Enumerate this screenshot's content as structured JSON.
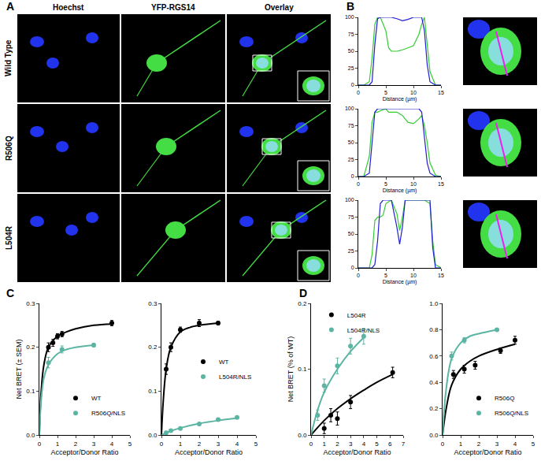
{
  "figure": {
    "panel_labels": [
      "A",
      "B",
      "C",
      "D"
    ],
    "columns": [
      "Hoechst",
      "YFP-RGS14",
      "Overlay"
    ],
    "rows": [
      "Wild Type",
      "R506Q",
      "L504R"
    ]
  },
  "chart_data": [
    {
      "type": "line",
      "x_label": "Distance (µm)",
      "xlim": [
        0,
        15
      ],
      "xticks": [
        0,
        5,
        10,
        15
      ],
      "ylim": [
        0,
        100
      ],
      "yticks": [
        0,
        25,
        50,
        75,
        100
      ],
      "series": [
        {
          "color": "#33cc33",
          "line_style": "solid",
          "x": [
            0,
            1,
            2,
            2.5,
            3,
            3.5,
            4,
            5,
            5.5,
            6,
            7,
            8,
            9,
            10,
            11,
            11.5,
            12,
            12.5,
            13,
            14,
            15
          ],
          "values": [
            0,
            0,
            5,
            40,
            90,
            100,
            100,
            80,
            55,
            50,
            50,
            52,
            55,
            58,
            75,
            90,
            100,
            60,
            20,
            0,
            0
          ]
        },
        {
          "color": "#2020d0",
          "line_style": "solid",
          "x": [
            0,
            1,
            2,
            2.5,
            3,
            3.5,
            4,
            5,
            5.5,
            6,
            7,
            8,
            9,
            10,
            11,
            11.5,
            12,
            12.5,
            13,
            14,
            15
          ],
          "values": [
            0,
            0,
            0,
            5,
            60,
            98,
            100,
            100,
            100,
            100,
            98,
            95,
            97,
            100,
            100,
            100,
            80,
            30,
            5,
            0,
            0
          ]
        }
      ]
    },
    {
      "type": "line",
      "x_label": "Distance (µm)",
      "xlim": [
        0,
        15
      ],
      "xticks": [
        0,
        5,
        10,
        15
      ],
      "ylim": [
        0,
        100
      ],
      "yticks": [
        0,
        25,
        50,
        75,
        100
      ],
      "series": [
        {
          "color": "#33cc33",
          "line_style": "solid",
          "x": [
            0,
            1,
            2,
            2.5,
            3,
            3.5,
            4,
            5,
            5.5,
            6,
            7,
            8,
            9,
            10,
            11,
            11.5,
            12,
            12.5,
            13,
            14,
            15
          ],
          "values": [
            0,
            0,
            30,
            80,
            95,
            95,
            97,
            100,
            95,
            95,
            95,
            90,
            80,
            78,
            85,
            90,
            75,
            50,
            20,
            2,
            0
          ]
        },
        {
          "color": "#2020d0",
          "line_style": "solid",
          "x": [
            0,
            1,
            2,
            2.5,
            3,
            3.5,
            4,
            5,
            5.5,
            6,
            7,
            8,
            9,
            10,
            11,
            11.5,
            12,
            12.5,
            13,
            14,
            15
          ],
          "values": [
            0,
            0,
            5,
            50,
            95,
            100,
            100,
            100,
            100,
            100,
            100,
            100,
            100,
            100,
            100,
            95,
            60,
            20,
            5,
            0,
            0
          ]
        }
      ]
    },
    {
      "type": "line",
      "x_label": "Distance (µm)",
      "xlim": [
        0,
        15
      ],
      "xticks": [
        0,
        5,
        10,
        15
      ],
      "ylim": [
        0,
        100
      ],
      "yticks": [
        0,
        25,
        50,
        75,
        100
      ],
      "series": [
        {
          "color": "#33cc33",
          "line_style": "solid",
          "x": [
            0,
            1,
            2,
            2.5,
            3,
            3.5,
            4,
            4.5,
            5,
            6,
            7,
            7.5,
            8,
            8.5,
            9,
            10,
            11,
            12,
            13,
            13.5,
            14,
            15
          ],
          "values": [
            0,
            0,
            0,
            20,
            70,
            75,
            75,
            78,
            95,
            100,
            80,
            55,
            75,
            100,
            100,
            100,
            100,
            100,
            95,
            40,
            5,
            0
          ]
        },
        {
          "color": "#2020d0",
          "line_style": "solid",
          "x": [
            0,
            1,
            2,
            2.5,
            3,
            3.5,
            4,
            4.5,
            5,
            6,
            7,
            7.5,
            8,
            8.5,
            9,
            10,
            11,
            12,
            13,
            13.5,
            14,
            15
          ],
          "values": [
            0,
            0,
            0,
            0,
            5,
            40,
            95,
            100,
            100,
            100,
            60,
            35,
            60,
            100,
            100,
            100,
            100,
            100,
            100,
            30,
            0,
            0
          ]
        }
      ]
    },
    {
      "type": "scatter",
      "x_label": "Acceptor/Donor Ratio",
      "y_label": "Net BRET (± SEM)",
      "xlim": [
        0,
        5
      ],
      "xticks": [
        0,
        1,
        2,
        3,
        4,
        5
      ],
      "ylim": [
        0,
        0.3
      ],
      "yticks": [
        {
          "value": 0,
          "label": "0.0"
        },
        0.1,
        0.2,
        0.3
      ],
      "legend": "lower right",
      "series": [
        {
          "name": "WT",
          "color": "#000000",
          "marker": "circle",
          "line_style": "solid",
          "x": [
            0.5,
            0.75,
            1,
            1.25,
            4
          ],
          "values": [
            0.2,
            0.21,
            0.225,
            0.23,
            0.255
          ],
          "error": [
            0.01,
            0.008,
            0.006,
            0.006,
            0.006
          ],
          "fit_x": [
            0,
            0.1,
            0.25,
            0.5,
            1,
            1.5,
            2,
            3,
            4
          ],
          "fit_y": [
            0,
            0.1,
            0.16,
            0.2,
            0.225,
            0.235,
            0.242,
            0.25,
            0.253
          ]
        },
        {
          "name": "R506Q/NLS",
          "color": "#5bb5a2",
          "marker": "circle",
          "line_style": "solid",
          "x": [
            0.5,
            1.25,
            3
          ],
          "values": [
            0.165,
            0.195,
            0.205
          ],
          "error": [
            0.012,
            0.008,
            0.004
          ],
          "fit_x": [
            0,
            0.1,
            0.25,
            0.5,
            1,
            1.5,
            2,
            3
          ],
          "fit_y": [
            0,
            0.08,
            0.13,
            0.16,
            0.185,
            0.195,
            0.2,
            0.205
          ]
        }
      ]
    },
    {
      "type": "scatter",
      "x_label": "Acceptor/Donor Ratio",
      "xlim": [
        0,
        5
      ],
      "xticks": [
        0,
        1,
        2,
        3,
        4,
        5
      ],
      "ylim": [
        0,
        0.3
      ],
      "yticks": [
        {
          "value": 0,
          "label": "0.0"
        },
        0.1,
        0.2,
        0.3
      ],
      "legend": "center right",
      "series": [
        {
          "name": "WT",
          "color": "#000000",
          "marker": "circle",
          "line_style": "solid",
          "x": [
            0.25,
            0.5,
            1,
            2,
            3
          ],
          "values": [
            0.15,
            0.2,
            0.24,
            0.255,
            0.255
          ],
          "error": [
            0.012,
            0.01,
            0.006,
            0.008,
            0.004
          ],
          "fit_x": [
            0,
            0.1,
            0.25,
            0.5,
            1,
            1.5,
            2,
            3
          ],
          "fit_y": [
            0,
            0.08,
            0.15,
            0.2,
            0.235,
            0.245,
            0.25,
            0.255
          ]
        },
        {
          "name": "L504R/NLS",
          "color": "#5bb5a2",
          "marker": "circle",
          "line_style": "solid",
          "x": [
            0.25,
            0.5,
            1,
            2,
            3,
            4
          ],
          "values": [
            0.005,
            0.01,
            0.015,
            0.025,
            0.035,
            0.04
          ],
          "error": [
            0.002,
            0.002,
            0.002,
            0.003,
            0.003,
            0.003
          ],
          "fit_x": [
            0,
            0.5,
            1,
            2,
            3,
            4
          ],
          "fit_y": [
            0,
            0.009,
            0.016,
            0.026,
            0.033,
            0.038
          ]
        }
      ]
    },
    {
      "type": "scatter",
      "x_label": "Acceptor/Donor Ratio",
      "y_label": "Net BRET (% of WT)",
      "xlim": [
        0,
        7
      ],
      "xticks": [
        0,
        1,
        2,
        3,
        4,
        5,
        6,
        7
      ],
      "ylim": [
        0,
        0.2
      ],
      "yticks": [
        {
          "value": 0,
          "label": "0.0"
        },
        0.1,
        0.2
      ],
      "legend": "upper left",
      "series": [
        {
          "name": "L504R",
          "color": "#000000",
          "marker": "circle",
          "line_style": "solid",
          "x": [
            1,
            1.5,
            2,
            3,
            6.2
          ],
          "values": [
            0.01,
            0.03,
            0.025,
            0.05,
            0.095
          ],
          "error": [
            0.008,
            0.01,
            0.01,
            0.01,
            0.008
          ],
          "fit_x": [
            0,
            1,
            2,
            3,
            4,
            5,
            6.2
          ],
          "fit_y": [
            0,
            0.022,
            0.04,
            0.055,
            0.068,
            0.08,
            0.092
          ]
        },
        {
          "name": "L504R/NLS",
          "color": "#5bb5a2",
          "marker": "circle",
          "line_style": "solid",
          "x": [
            0.5,
            1,
            2,
            3,
            4
          ],
          "values": [
            0.03,
            0.075,
            0.105,
            0.135,
            0.15
          ],
          "error": [
            0.008,
            0.01,
            0.012,
            0.012,
            0.012
          ],
          "fit_x": [
            0,
            0.5,
            1,
            2,
            3,
            4
          ],
          "fit_y": [
            0,
            0.038,
            0.065,
            0.1,
            0.127,
            0.148
          ]
        }
      ]
    },
    {
      "type": "scatter",
      "x_label": "Acceptor/Donor Ratio",
      "xlim": [
        0,
        5
      ],
      "xticks": [
        0,
        1,
        2,
        3,
        4,
        5
      ],
      "ylim": [
        0,
        1
      ],
      "yticks": [
        {
          "value": 0,
          "label": "0.0"
        },
        0.2,
        0.4,
        0.6,
        0.8,
        {
          "value": 1,
          "label": "1.0"
        }
      ],
      "legend": "lower right",
      "series": [
        {
          "name": "R506Q",
          "color": "#000000",
          "marker": "circle",
          "line_style": "solid",
          "x": [
            0.6,
            1.2,
            1.8,
            3.2,
            4
          ],
          "values": [
            0.46,
            0.5,
            0.53,
            0.64,
            0.72
          ],
          "error": [
            0.03,
            0.03,
            0.03,
            0.02,
            0.03
          ],
          "fit_x": [
            0,
            0.2,
            0.5,
            1,
            1.5,
            2,
            3,
            4
          ],
          "fit_y": [
            0,
            0.2,
            0.38,
            0.5,
            0.56,
            0.6,
            0.65,
            0.69
          ]
        },
        {
          "name": "R506Q/NLS",
          "color": "#5bb5a2",
          "marker": "circle",
          "line_style": "solid",
          "x": [
            0.5,
            1.2,
            3
          ],
          "values": [
            0.6,
            0.72,
            0.8
          ],
          "error": [
            0.03,
            0.02,
            0.01
          ],
          "fit_x": [
            0,
            0.2,
            0.5,
            1,
            1.5,
            2,
            3
          ],
          "fit_y": [
            0,
            0.35,
            0.58,
            0.7,
            0.75,
            0.77,
            0.8
          ]
        }
      ]
    }
  ]
}
